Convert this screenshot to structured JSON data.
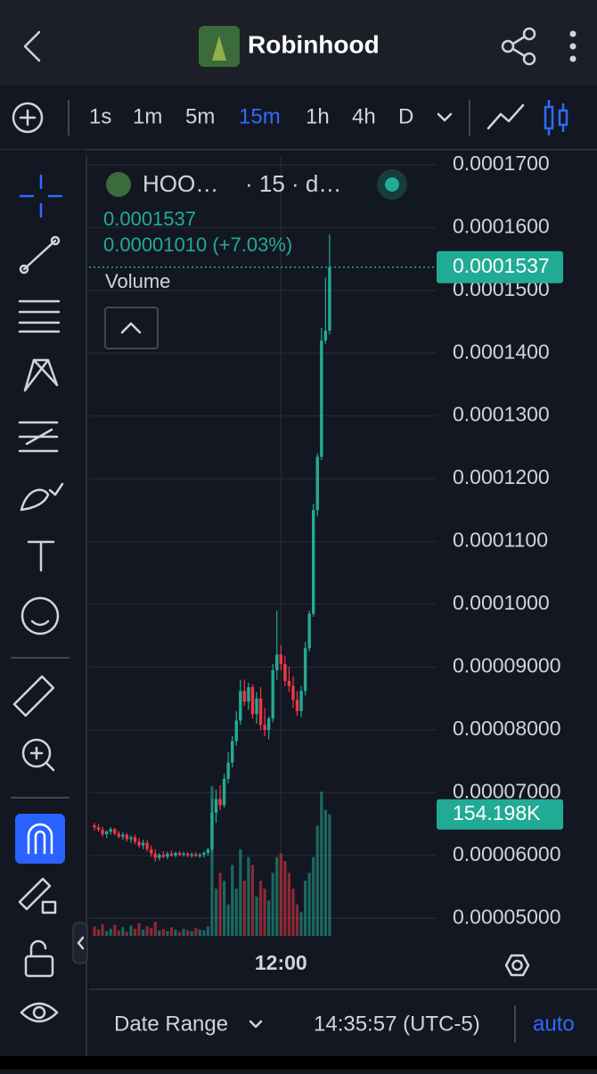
{
  "header": {
    "title": "Robinhood"
  },
  "toolbar": {
    "intervals": [
      "1s",
      "1m",
      "5m",
      "15m",
      "1h",
      "4h",
      "D"
    ]
  },
  "chart_data": {
    "type": "candlestick",
    "symbol": "HOO…",
    "interval": "· 15 · d…",
    "change": "0.00001010 (+7.03%)",
    "volume_title": "Volume",
    "categories": [
      null,
      null,
      null,
      null,
      null,
      null,
      null,
      null,
      null,
      null,
      null,
      null,
      null,
      null,
      null,
      null,
      null,
      null,
      null,
      null,
      null,
      null,
      null,
      null,
      null,
      null,
      null,
      null,
      null,
      null,
      null,
      null,
      null,
      null,
      null,
      null,
      null,
      null,
      null,
      null,
      null,
      null,
      null,
      null,
      null,
      null,
      "12:00",
      null,
      null,
      null,
      null,
      null,
      null,
      null,
      null,
      null,
      null,
      null,
      null
    ],
    "candles": [
      [
        6.48e-05,
        6.52e-05,
        6.4e-05,
        6.45e-05
      ],
      [
        6.45e-05,
        6.5e-05,
        6.38e-05,
        6.41e-05
      ],
      [
        6.41e-05,
        6.46e-05,
        6.3e-05,
        6.34e-05
      ],
      [
        6.34e-05,
        6.4e-05,
        6.28e-05,
        6.38e-05
      ],
      [
        6.38e-05,
        6.45e-05,
        6.33e-05,
        6.42e-05
      ],
      [
        6.42e-05,
        6.44e-05,
        6.32e-05,
        6.35e-05
      ],
      [
        6.35e-05,
        6.39e-05,
        6.27e-05,
        6.3e-05
      ],
      [
        6.3e-05,
        6.37e-05,
        6.25e-05,
        6.33e-05
      ],
      [
        6.33e-05,
        6.36e-05,
        6.22e-05,
        6.26e-05
      ],
      [
        6.26e-05,
        6.32e-05,
        6.2e-05,
        6.29e-05
      ],
      [
        6.29e-05,
        6.33e-05,
        6.18e-05,
        6.22e-05
      ],
      [
        6.22e-05,
        6.28e-05,
        6.12e-05,
        6.16e-05
      ],
      [
        6.16e-05,
        6.25e-05,
        6.1e-05,
        6.2e-05
      ],
      [
        6.2e-05,
        6.24e-05,
        6.06e-05,
        6.1e-05
      ],
      [
        6.1e-05,
        6.16e-05,
        5.98e-05,
        6.03e-05
      ],
      [
        6.03e-05,
        6.1e-05,
        5.9e-05,
        5.96e-05
      ],
      [
        5.96e-05,
        6.04e-05,
        5.92e-05,
        6.01e-05
      ],
      [
        6.01e-05,
        6.07e-05,
        5.96e-05,
        5.98e-05
      ],
      [
        5.98e-05,
        6.06e-05,
        5.94e-05,
        6.03e-05
      ],
      [
        6.03e-05,
        6.08e-05,
        5.98e-05,
        6e-05
      ],
      [
        6e-05,
        6.06e-05,
        5.97e-05,
        6.04e-05
      ],
      [
        6.04e-05,
        6.07e-05,
        5.99e-05,
        6.01e-05
      ],
      [
        6.01e-05,
        6.06e-05,
        5.98e-05,
        6.03e-05
      ],
      [
        6.03e-05,
        6.05e-05,
        5.97e-05,
        6e-05
      ],
      [
        6e-05,
        6.05e-05,
        5.96e-05,
        6.02e-05
      ],
      [
        6.02e-05,
        6.06e-05,
        5.98e-05,
        5.99e-05
      ],
      [
        5.99e-05,
        6.04e-05,
        5.96e-05,
        6.01e-05
      ],
      [
        6.01e-05,
        6.07e-05,
        5.97e-05,
        6.04e-05
      ],
      [
        6.04e-05,
        6.12e-05,
        6e-05,
        6.1e-05
      ],
      [
        6.1e-05,
        6.9e-05,
        6.06e-05,
        6.68e-05
      ],
      [
        6.68e-05,
        7.05e-05,
        6.52e-05,
        6.9e-05
      ],
      [
        6.9e-05,
        7.12e-05,
        6.72e-05,
        6.8e-05
      ],
      [
        6.8e-05,
        7.3e-05,
        6.76e-05,
        7.22e-05
      ],
      [
        7.22e-05,
        7.65e-05,
        7.15e-05,
        7.48e-05
      ],
      [
        7.48e-05,
        7.9e-05,
        7.4e-05,
        7.82e-05
      ],
      [
        7.82e-05,
        8.3e-05,
        7.75e-05,
        8.15e-05
      ],
      [
        8.15e-05,
        8.8e-05,
        8.08e-05,
        8.62e-05
      ],
      [
        8.62e-05,
        8.8e-05,
        8.38e-05,
        8.45e-05
      ],
      [
        8.45e-05,
        8.75e-05,
        8.32e-05,
        8.68e-05
      ],
      [
        8.68e-05,
        8.72e-05,
        8.18e-05,
        8.25e-05
      ],
      [
        8.25e-05,
        8.6e-05,
        8.1e-05,
        8.5e-05
      ],
      [
        8.5e-05,
        8.68e-05,
        8e-05,
        8.08e-05
      ],
      [
        8.08e-05,
        8.35e-05,
        7.9e-05,
        8e-05
      ],
      [
        8e-05,
        8.22e-05,
        7.85e-05,
        8.18e-05
      ],
      [
        8.18e-05,
        9.05e-05,
        8.12e-05,
        8.95e-05
      ],
      [
        8.95e-05,
        9.9e-05,
        8.8e-05,
        9.2e-05
      ],
      [
        9.2e-05,
        9.35e-05,
        8.95e-05,
        9.05e-05
      ],
      [
        9.05e-05,
        9.18e-05,
        8.7e-05,
        8.78e-05
      ],
      [
        8.78e-05,
        9e-05,
        8.6e-05,
        8.7e-05
      ],
      [
        8.7e-05,
        8.85e-05,
        8.35e-05,
        8.48e-05
      ],
      [
        8.48e-05,
        8.62e-05,
        8.22e-05,
        8.3e-05
      ],
      [
        8.3e-05,
        8.7e-05,
        8.2e-05,
        8.62e-05
      ],
      [
        8.62e-05,
        9.4e-05,
        8.55e-05,
        9.3e-05
      ],
      [
        9.3e-05,
        9.9e-05,
        9.25e-05,
        9.85e-05
      ],
      [
        9.85e-05,
        0.000116,
        9.8e-05,
        0.000115
      ],
      [
        0.000115,
        0.000124,
        0.000114,
        0.0001235
      ],
      [
        0.0001235,
        0.000144,
        0.000123,
        0.000142
      ],
      [
        0.000142,
        0.000152,
        0.0001415,
        0.0001436
      ],
      [
        0.0001436,
        0.0001589,
        0.000143,
        0.0001537
      ]
    ],
    "volume": [
      12000,
      8000,
      15000,
      6000,
      9000,
      14000,
      7000,
      11000,
      5000,
      13000,
      9000,
      16000,
      8000,
      12000,
      10000,
      18000,
      7000,
      9000,
      6000,
      11000,
      8000,
      5000,
      9000,
      7000,
      6000,
      10000,
      8000,
      7000,
      12000,
      190000,
      60000,
      80000,
      70000,
      40000,
      90000,
      60000,
      110000,
      70000,
      100000,
      90000,
      50000,
      70000,
      60000,
      45000,
      80000,
      100000,
      105000,
      95000,
      80000,
      60000,
      40000,
      30000,
      70000,
      80000,
      100000,
      140000,
      183000,
      160000,
      154198
    ],
    "volume_label": "154.198K",
    "volume_ylim": [
      0,
      600000
    ],
    "ylim": [
      4.72e-05,
      0.0001714
    ],
    "yticks": [
      {
        "value": 0.00017,
        "label": "0.0001700"
      },
      {
        "value": 0.00016,
        "label": "0.0001600"
      },
      {
        "value": 0.00015,
        "label": "0.0001500"
      },
      {
        "value": 0.00014,
        "label": "0.0001400"
      },
      {
        "value": 0.00013,
        "label": "0.0001300"
      },
      {
        "value": 0.00012,
        "label": "0.0001200"
      },
      {
        "value": 0.00011,
        "label": "0.0001100"
      },
      {
        "value": 0.0001,
        "label": "0.0001000"
      },
      {
        "value": 9e-05,
        "label": "0.00009000"
      },
      {
        "value": 8e-05,
        "label": "0.00008000"
      },
      {
        "value": 7e-05,
        "label": "0.00007000"
      },
      {
        "value": 6e-05,
        "label": "0.00006000"
      },
      {
        "value": 5e-05,
        "label": "0.00005000"
      }
    ],
    "up_color": "#22ab94",
    "down_color": "#f23645",
    "grid": true
  },
  "footer": {
    "date_range": "Date Range",
    "clock": "14:35:57 (UTC-5)",
    "auto": "auto"
  }
}
